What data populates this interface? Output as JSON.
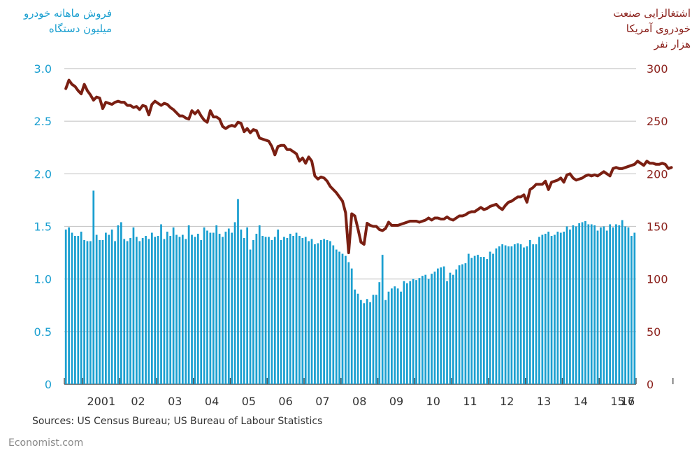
{
  "left_title": [
    "فروش ماهانه خودرو",
    "میلیون دستگاه"
  ],
  "right_title": [
    "اشتغالزایی صنعت",
    "خودروی آمریکا",
    "هزار نفر"
  ],
  "source": "Sources: US Census Bureau; US Bureau of Labour Statistics",
  "brand": "Economist.com",
  "colors": {
    "bars": "#1a9fd0",
    "line": "#7a1f12",
    "grid": "#c8c8c8",
    "left_axis": "#1a9fd0",
    "right_axis": "#8a1f1a"
  },
  "chart_data": {
    "type": "bar+line",
    "x_start": "2000-07",
    "x_ticks": [
      "2001",
      "02",
      "03",
      "04",
      "05",
      "06",
      "07",
      "08",
      "09",
      "10",
      "11",
      "12",
      "13",
      "14",
      "15",
      "16",
      "17"
    ],
    "y_left": {
      "ylim": [
        0,
        3.0
      ],
      "ticks": [
        "0",
        "0.5",
        "1.0",
        "1.5",
        "2.0",
        "2.5",
        "3.0"
      ]
    },
    "y_right": {
      "ylim": [
        0,
        300
      ],
      "ticks": [
        "0",
        "50",
        "100",
        "150",
        "200",
        "250",
        "300"
      ]
    },
    "grid": true,
    "series": [
      {
        "type": "bar",
        "axis": "left",
        "values": [
          1.47,
          1.49,
          1.44,
          1.41,
          1.41,
          1.45,
          1.37,
          1.36,
          1.36,
          1.84,
          1.42,
          1.37,
          1.37,
          1.44,
          1.42,
          1.47,
          1.36,
          1.51,
          1.54,
          1.38,
          1.36,
          1.39,
          1.49,
          1.4,
          1.36,
          1.39,
          1.41,
          1.38,
          1.44,
          1.4,
          1.41,
          1.52,
          1.38,
          1.45,
          1.41,
          1.49,
          1.42,
          1.4,
          1.42,
          1.38,
          1.51,
          1.42,
          1.4,
          1.43,
          1.37,
          1.49,
          1.46,
          1.44,
          1.44,
          1.51,
          1.43,
          1.4,
          1.45,
          1.48,
          1.44,
          1.54,
          1.76,
          1.47,
          1.39,
          1.49,
          1.28,
          1.37,
          1.43,
          1.51,
          1.41,
          1.4,
          1.4,
          1.37,
          1.4,
          1.47,
          1.37,
          1.4,
          1.39,
          1.43,
          1.41,
          1.44,
          1.41,
          1.39,
          1.4,
          1.36,
          1.38,
          1.33,
          1.34,
          1.37,
          1.38,
          1.37,
          1.36,
          1.32,
          1.28,
          1.26,
          1.24,
          1.22,
          1.16,
          1.1,
          0.9,
          0.86,
          0.8,
          0.77,
          0.81,
          0.78,
          0.85,
          0.85,
          0.97,
          1.23,
          0.8,
          0.88,
          0.91,
          0.93,
          0.91,
          0.88,
          0.98,
          0.96,
          0.98,
          1.0,
          0.99,
          1.01,
          1.03,
          1.04,
          1.0,
          1.05,
          1.07,
          1.1,
          1.11,
          1.12,
          0.98,
          1.06,
          1.04,
          1.09,
          1.13,
          1.14,
          1.15,
          1.24,
          1.2,
          1.22,
          1.23,
          1.21,
          1.21,
          1.19,
          1.26,
          1.24,
          1.29,
          1.31,
          1.33,
          1.32,
          1.31,
          1.31,
          1.33,
          1.34,
          1.33,
          1.3,
          1.31,
          1.37,
          1.33,
          1.33,
          1.4,
          1.42,
          1.43,
          1.45,
          1.41,
          1.42,
          1.45,
          1.44,
          1.45,
          1.5,
          1.47,
          1.51,
          1.5,
          1.53,
          1.54,
          1.55,
          1.52,
          1.52,
          1.51,
          1.46,
          1.49,
          1.5,
          1.46,
          1.52,
          1.49,
          1.52,
          1.51,
          1.56,
          1.5,
          1.49,
          1.41,
          1.44
        ]
      },
      {
        "type": "line",
        "axis": "right",
        "values": [
          281,
          289,
          285,
          283,
          279,
          276,
          285,
          279,
          275,
          270,
          273,
          272,
          262,
          268,
          267,
          266,
          268,
          269,
          268,
          268,
          265,
          265,
          263,
          264,
          261,
          265,
          264,
          256,
          266,
          269,
          267,
          265,
          267,
          266,
          263,
          261,
          258,
          255,
          255,
          253,
          252,
          260,
          257,
          260,
          255,
          251,
          249,
          260,
          254,
          254,
          252,
          245,
          243,
          245,
          246,
          245,
          249,
          248,
          240,
          243,
          239,
          242,
          241,
          234,
          233,
          232,
          231,
          226,
          218,
          226,
          227,
          227,
          223,
          223,
          221,
          219,
          212,
          215,
          210,
          216,
          212,
          198,
          195,
          197,
          196,
          193,
          188,
          185,
          182,
          178,
          174,
          163,
          125,
          162,
          160,
          148,
          135,
          133,
          153,
          151,
          150,
          150,
          147,
          146,
          148,
          154,
          151,
          151,
          151,
          152,
          153,
          154,
          155,
          155,
          155,
          154,
          155,
          156,
          158,
          156,
          158,
          158,
          157,
          157,
          159,
          157,
          156,
          158,
          160,
          160,
          161,
          163,
          164,
          164,
          166,
          168,
          166,
          167,
          169,
          170,
          171,
          168,
          166,
          170,
          173,
          174,
          176,
          178,
          178,
          180,
          173,
          185,
          187,
          190,
          190,
          190,
          193,
          185,
          192,
          193,
          194,
          196,
          192,
          199,
          200,
          196,
          194,
          195,
          196,
          198,
          199,
          198,
          199,
          198,
          200,
          202,
          200,
          198,
          205,
          206,
          205,
          205,
          206,
          207,
          208,
          209,
          212,
          210,
          208,
          212,
          210,
          210,
          209,
          209,
          210,
          209,
          205,
          206
        ]
      }
    ]
  }
}
